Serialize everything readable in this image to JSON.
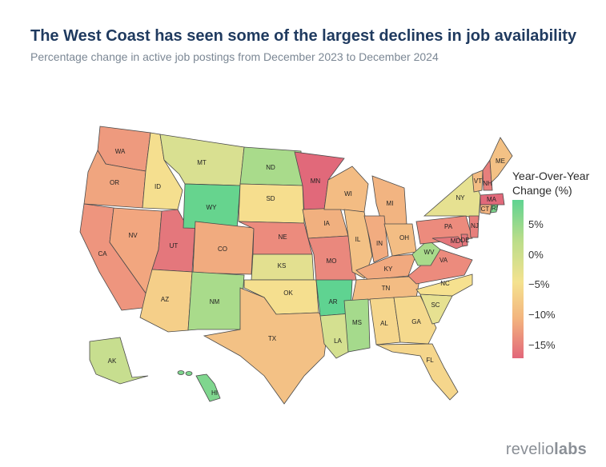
{
  "title": "The West Coast has seen some of the largest declines in job availability",
  "subtitle": "Percentage change in active job postings from December 2023 to December 2024",
  "legend": {
    "title_line1": "Year-Over-Year",
    "title_line2": "Change (%)",
    "ticks": [
      "5%",
      "0%",
      "−5%",
      "−10%",
      "−15%"
    ]
  },
  "brand": {
    "part1": "revelio",
    "part2": "labs"
  },
  "states": [
    {
      "abbr": "WA",
      "color": "#ee9a7e"
    },
    {
      "abbr": "OR",
      "color": "#f0a57f"
    },
    {
      "abbr": "CA",
      "color": "#ee957e"
    },
    {
      "abbr": "ID",
      "color": "#f5df8f"
    },
    {
      "abbr": "NV",
      "color": "#f2a67f"
    },
    {
      "abbr": "UT",
      "color": "#e4777c"
    },
    {
      "abbr": "AZ",
      "color": "#f5cf89"
    },
    {
      "abbr": "MT",
      "color": "#d9e091"
    },
    {
      "abbr": "WY",
      "color": "#66d48e"
    },
    {
      "abbr": "CO",
      "color": "#f1ab7f"
    },
    {
      "abbr": "NM",
      "color": "#a9db8b"
    },
    {
      "abbr": "ND",
      "color": "#a9db8b"
    },
    {
      "abbr": "SD",
      "color": "#f6de8e"
    },
    {
      "abbr": "NE",
      "color": "#ec8b7d"
    },
    {
      "abbr": "KS",
      "color": "#e3e090"
    },
    {
      "abbr": "OK",
      "color": "#f5df8f"
    },
    {
      "abbr": "TX",
      "color": "#f3c185"
    },
    {
      "abbr": "MN",
      "color": "#e1697a"
    },
    {
      "abbr": "IA",
      "color": "#f1b07f"
    },
    {
      "abbr": "MO",
      "color": "#ea887d"
    },
    {
      "abbr": "AR",
      "color": "#5fd391"
    },
    {
      "abbr": "LA",
      "color": "#d4e090"
    },
    {
      "abbr": "WI",
      "color": "#f3bc83"
    },
    {
      "abbr": "IL",
      "color": "#f3c185"
    },
    {
      "abbr": "MI",
      "color": "#f2b481"
    },
    {
      "abbr": "IN",
      "color": "#f2ac80"
    },
    {
      "abbr": "OH",
      "color": "#f3bd84"
    },
    {
      "abbr": "KY",
      "color": "#f1a97f"
    },
    {
      "abbr": "TN",
      "color": "#f3bc83"
    },
    {
      "abbr": "MS",
      "color": "#a5da8c"
    },
    {
      "abbr": "AL",
      "color": "#f5d68c"
    },
    {
      "abbr": "GA",
      "color": "#f5d98d"
    },
    {
      "abbr": "FL",
      "color": "#f5d68c"
    },
    {
      "abbr": "SC",
      "color": "#e6e191"
    },
    {
      "abbr": "NC",
      "color": "#f6e18f"
    },
    {
      "abbr": "VA",
      "color": "#ec8b7d"
    },
    {
      "abbr": "WV",
      "color": "#a9db8b"
    },
    {
      "abbr": "PA",
      "color": "#ec8b7d"
    },
    {
      "abbr": "NY",
      "color": "#e6e191"
    },
    {
      "abbr": "VT",
      "color": "#f3bc83"
    },
    {
      "abbr": "NH",
      "color": "#e77f7c"
    },
    {
      "abbr": "ME",
      "color": "#f3c185"
    },
    {
      "abbr": "MA",
      "color": "#e1697a"
    },
    {
      "abbr": "CT",
      "color": "#f2b481"
    },
    {
      "abbr": "RI",
      "color": "#7fd68e"
    },
    {
      "abbr": "NJ",
      "color": "#e77f7c"
    },
    {
      "abbr": "MD",
      "color": "#e4777c"
    },
    {
      "abbr": "DE",
      "color": "#e4777c"
    },
    {
      "abbr": "AK",
      "color": "#c7de8f"
    },
    {
      "abbr": "HI",
      "color": "#7fd68e"
    }
  ]
}
